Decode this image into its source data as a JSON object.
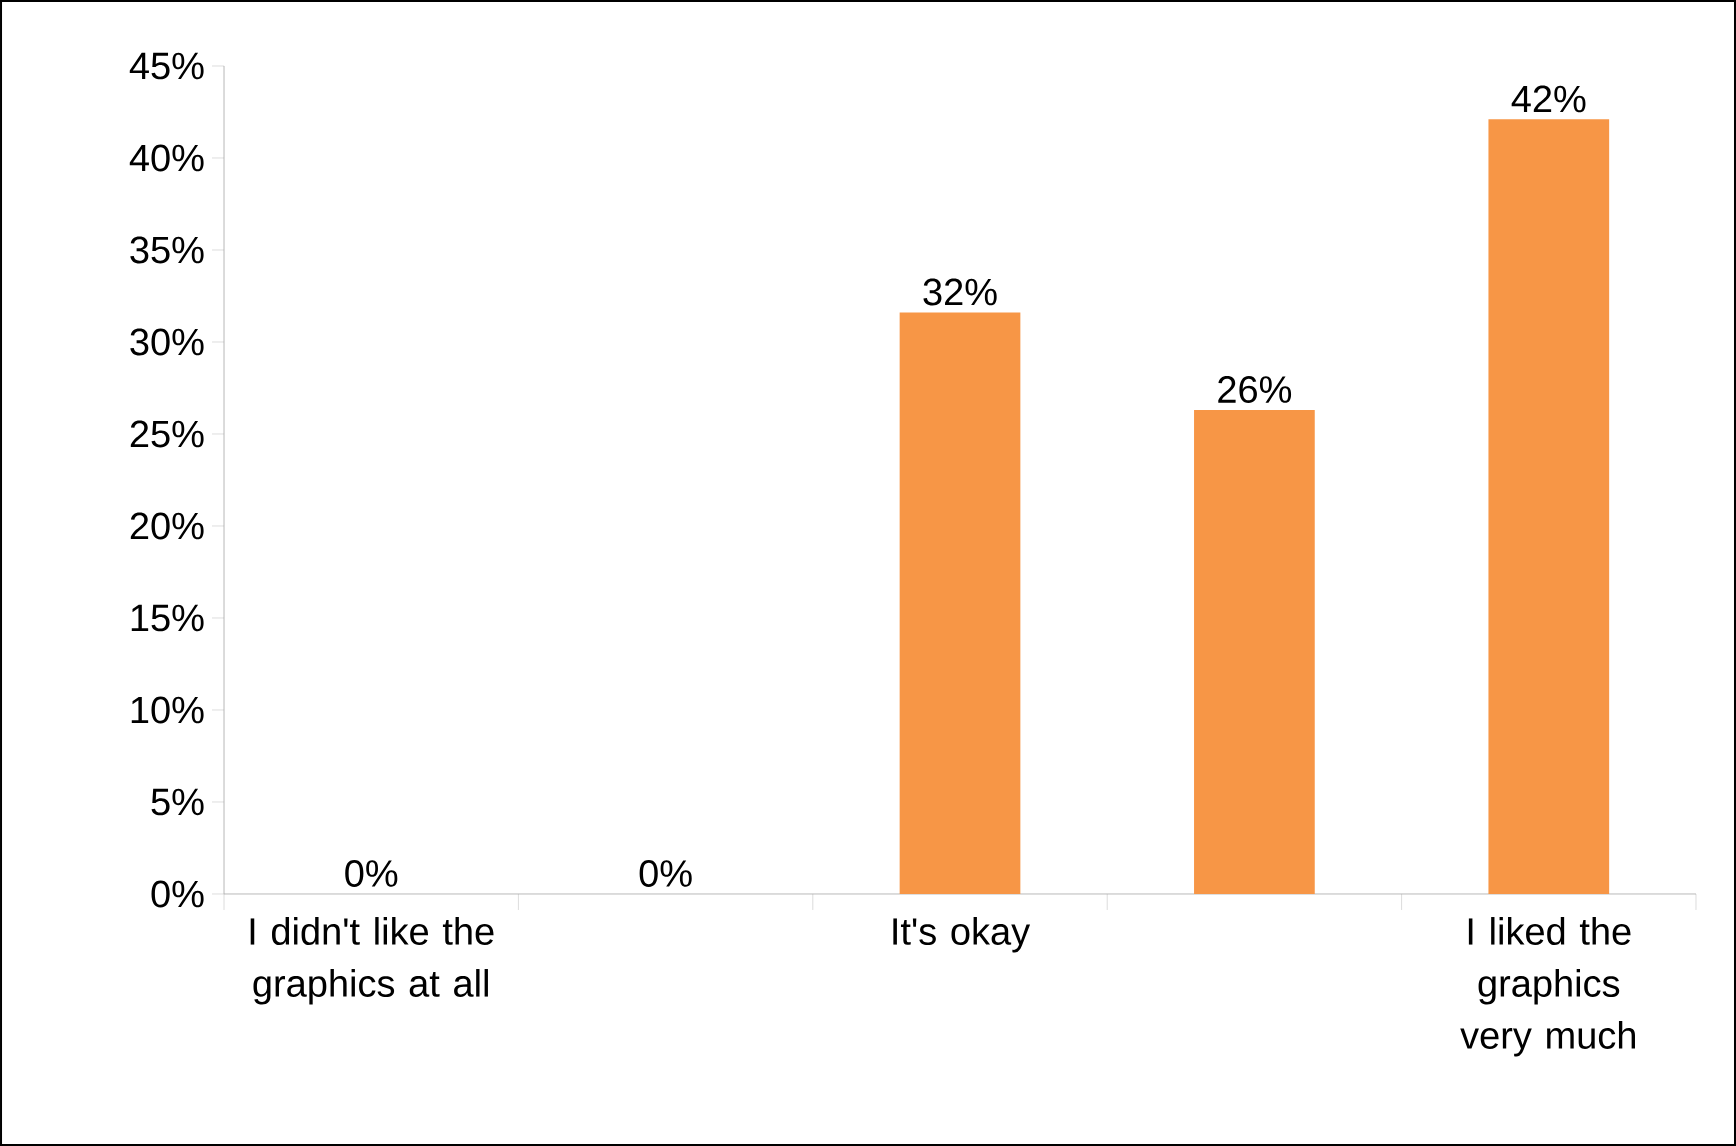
{
  "chart_data": {
    "type": "bar",
    "categories": [
      "I didn't like the graphics at all",
      null,
      "It's okay",
      null,
      "I liked the graphics very much"
    ],
    "values": [
      0,
      0,
      31.6,
      26.3,
      42.1
    ],
    "value_labels": [
      "0%",
      "0%",
      "32%",
      "26%",
      "42%"
    ],
    "color": "#f79646",
    "ylim": [
      0,
      45
    ],
    "yticks": [
      {
        "value": 0,
        "label": "0%"
      },
      {
        "value": 5,
        "label": "5%"
      },
      {
        "value": 10,
        "label": "10%"
      },
      {
        "value": 15,
        "label": "15%"
      },
      {
        "value": 20,
        "label": "20%"
      },
      {
        "value": 25,
        "label": "25%"
      },
      {
        "value": 30,
        "label": "30%"
      },
      {
        "value": 35,
        "label": "35%"
      },
      {
        "value": 40,
        "label": "40%"
      },
      {
        "value": 45,
        "label": "45%"
      }
    ]
  }
}
